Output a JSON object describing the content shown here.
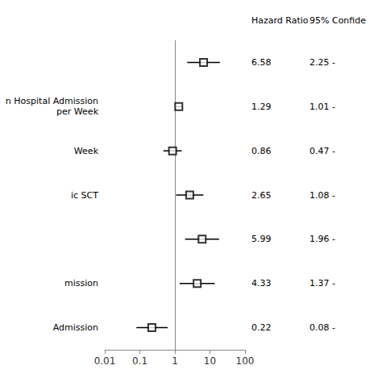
{
  "chart_data": {
    "type": "forest",
    "categories": [
      null,
      "n Hospital Admission\nper Week",
      "Week",
      "ic SCT",
      null,
      "mission",
      "Admission"
    ],
    "values": [
      6.58,
      1.29,
      0.86,
      2.65,
      5.99,
      4.33,
      0.22
    ],
    "ci_low": [
      2.25,
      1.01,
      0.47,
      1.08,
      1.96,
      1.37,
      0.08
    ],
    "ci_high": [
      19.2,
      1.65,
      1.57,
      6.5,
      18.3,
      13.7,
      0.62
    ],
    "ci_text": [
      "2.25 -",
      "1.01 -",
      "0.47 -",
      "1.08 -",
      "1.96 -",
      "1.37 -",
      "0.08 -"
    ],
    "column_headers": [
      "Hazard Ratio",
      "95% Confide"
    ],
    "reference_line": 1,
    "xlim": [
      0.01,
      100
    ],
    "xticks": [
      0.01,
      0.1,
      1,
      10,
      100
    ],
    "log": "x",
    "grid": false,
    "color": "#000000",
    "marker": "square"
  }
}
